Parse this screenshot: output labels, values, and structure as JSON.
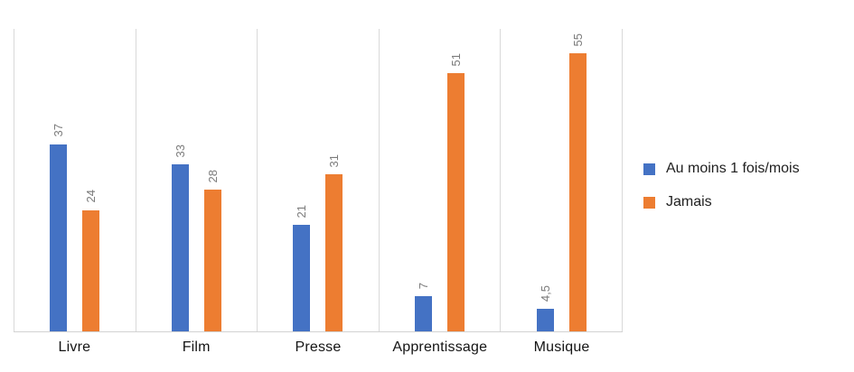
{
  "chart_data": {
    "type": "bar",
    "title": "",
    "categories": [
      "Livre",
      "Film",
      "Presse",
      "Apprentissage",
      "Musique"
    ],
    "series": [
      {
        "name": "Au moins 1 fois/mois",
        "color": "#4472C4",
        "values": [
          37,
          33,
          21,
          7,
          4.5
        ],
        "value_labels": [
          "37",
          "33",
          "21",
          "7",
          "4,5"
        ]
      },
      {
        "name": "Jamais",
        "color": "#ED7D31",
        "values": [
          24,
          28,
          31,
          51,
          55
        ],
        "value_labels": [
          "24",
          "28",
          "31",
          "51",
          "55"
        ]
      }
    ],
    "ylim": [
      0,
      60
    ],
    "xlabel": "",
    "ylabel": "",
    "y_axis_ticks_visible": false,
    "value_labels_rotated_degrees": -90,
    "gridlines": "vertical-category-separators",
    "legend_position": "right"
  },
  "legend": {
    "items": [
      {
        "label": "Au moins 1 fois/mois",
        "color": "#4472C4"
      },
      {
        "label": "Jamais",
        "color": "#ED7D31"
      }
    ]
  },
  "colors": {
    "background": "#FFFFFF",
    "series_blue": "#4472C4",
    "series_orange": "#ED7D31",
    "grid_line": "#D9D9D9",
    "axis_line": "#D2D2D2",
    "value_label_text": "#7B7B7B",
    "category_label_text": "#141414",
    "legend_text": "#1F1F1F"
  }
}
